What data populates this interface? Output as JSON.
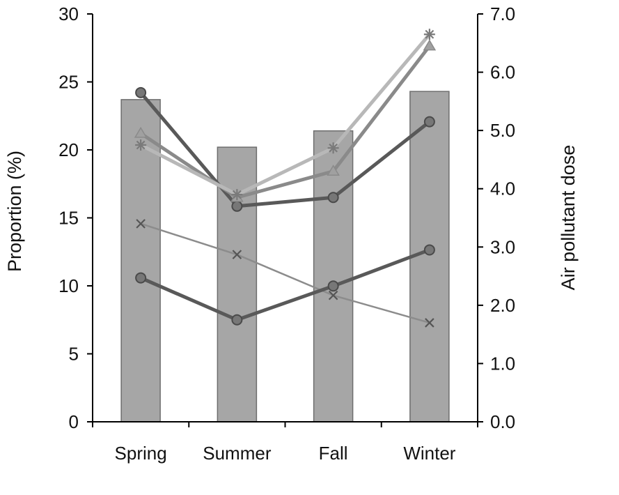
{
  "chart_data": {
    "type": "bar",
    "categories": [
      "Spring",
      "Summer",
      "Fall",
      "Winter"
    ],
    "bars": {
      "axis": "left",
      "values": [
        23.7,
        20.2,
        21.4,
        24.3
      ],
      "color": "#a6a6a6",
      "stroke": "#6e6e6e"
    },
    "line_series": [
      {
        "axis": "right",
        "marker": "circle",
        "color": "#595959",
        "width": 5,
        "values": [
          5.65,
          3.7,
          3.85,
          5.15
        ]
      },
      {
        "axis": "right",
        "marker": "triangle",
        "color": "#8a8a8a",
        "width": 5,
        "values": [
          4.95,
          3.85,
          4.3,
          6.45
        ]
      },
      {
        "axis": "right",
        "marker": "star",
        "color": "#b8b8b8",
        "width": 5,
        "values": [
          4.75,
          3.9,
          4.7,
          6.65
        ]
      },
      {
        "axis": "right",
        "marker": "x",
        "color": "#8c8c8c",
        "width": 2.5,
        "values": [
          3.4,
          2.87,
          2.17,
          1.7
        ]
      },
      {
        "axis": "right",
        "marker": "circle",
        "color": "#595959",
        "width": 5,
        "values": [
          2.47,
          1.75,
          2.33,
          2.95
        ]
      }
    ],
    "y_left": {
      "label": "Proportion (%)",
      "ylim": [
        0,
        30
      ],
      "ticks": [
        "0",
        "5",
        "10",
        "15",
        "20",
        "25",
        "30"
      ]
    },
    "y_right": {
      "label": "Air pollutant dose",
      "ylim": [
        0,
        7
      ],
      "ticks": [
        "0.0",
        "1.0",
        "2.0",
        "3.0",
        "4.0",
        "5.0",
        "6.0",
        "7.0"
      ]
    },
    "grid": false,
    "legend": "none"
  }
}
